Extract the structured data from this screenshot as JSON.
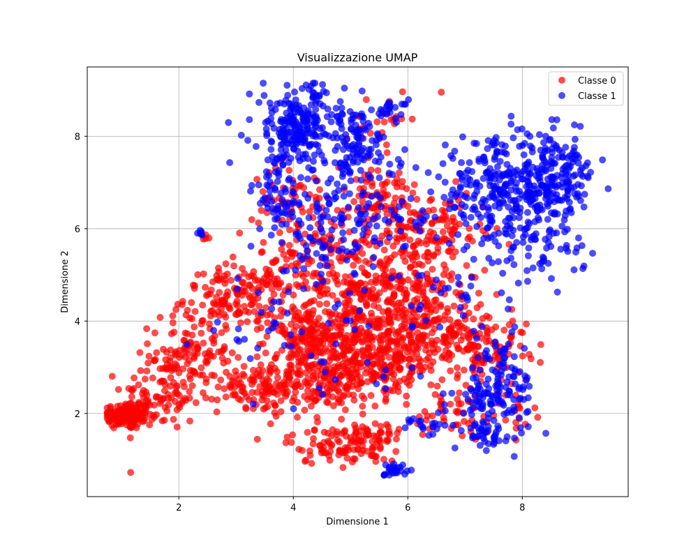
{
  "chart_data": {
    "type": "scatter",
    "title": "Visualizzazione UMAP",
    "xlabel": "Dimensione 1",
    "ylabel": "Dimensione 2",
    "xlim": [
      0.4,
      9.85
    ],
    "ylim": [
      0.2,
      9.5
    ],
    "xticks": [
      2,
      4,
      6,
      8
    ],
    "yticks": [
      2,
      4,
      6,
      8
    ],
    "grid": true,
    "legend_position": "top-right",
    "series": [
      {
        "name": "Classe 0",
        "color": "#ff0000",
        "alpha": 0.7,
        "clusters": [
          {
            "cx": 1.1,
            "cy": 1.95,
            "sx": 0.22,
            "sy": 0.15,
            "n": 140
          },
          {
            "cx": 1.7,
            "cy": 2.4,
            "sx": 0.35,
            "sy": 0.4,
            "n": 90
          },
          {
            "cx": 2.2,
            "cy": 3.3,
            "sx": 0.35,
            "sy": 0.45,
            "n": 110
          },
          {
            "cx": 3.0,
            "cy": 4.5,
            "sx": 0.45,
            "sy": 0.35,
            "n": 150
          },
          {
            "cx": 3.6,
            "cy": 2.6,
            "sx": 0.45,
            "sy": 0.3,
            "n": 150
          },
          {
            "cx": 4.2,
            "cy": 3.6,
            "sx": 0.35,
            "sy": 0.35,
            "n": 120
          },
          {
            "cx": 4.7,
            "cy": 2.8,
            "sx": 0.4,
            "sy": 0.4,
            "n": 160
          },
          {
            "cx": 5.0,
            "cy": 4.0,
            "sx": 0.5,
            "sy": 0.5,
            "n": 200
          },
          {
            "cx": 5.9,
            "cy": 4.8,
            "sx": 0.45,
            "sy": 0.7,
            "n": 230
          },
          {
            "cx": 5.6,
            "cy": 3.1,
            "sx": 0.4,
            "sy": 0.4,
            "n": 140
          },
          {
            "cx": 6.5,
            "cy": 3.7,
            "sx": 0.45,
            "sy": 0.5,
            "n": 150
          },
          {
            "cx": 7.3,
            "cy": 3.5,
            "sx": 0.4,
            "sy": 0.45,
            "n": 110
          },
          {
            "cx": 4.8,
            "cy": 1.3,
            "sx": 0.45,
            "sy": 0.2,
            "n": 90
          },
          {
            "cx": 5.4,
            "cy": 1.5,
            "sx": 0.25,
            "sy": 0.2,
            "n": 40
          },
          {
            "cx": 4.4,
            "cy": 5.2,
            "sx": 0.5,
            "sy": 0.5,
            "n": 120
          },
          {
            "cx": 5.5,
            "cy": 6.5,
            "sx": 0.55,
            "sy": 0.45,
            "n": 110
          },
          {
            "cx": 4.0,
            "cy": 6.6,
            "sx": 0.35,
            "sy": 0.4,
            "n": 60
          },
          {
            "cx": 6.6,
            "cy": 6.0,
            "sx": 0.45,
            "sy": 0.4,
            "n": 80
          },
          {
            "cx": 6.8,
            "cy": 2.0,
            "sx": 0.35,
            "sy": 0.3,
            "n": 40
          },
          {
            "cx": 7.8,
            "cy": 2.0,
            "sx": 0.2,
            "sy": 0.25,
            "n": 20
          },
          {
            "cx": 5.5,
            "cy": 8.3,
            "sx": 0.3,
            "sy": 0.3,
            "n": 25
          },
          {
            "cx": 2.45,
            "cy": 5.82,
            "sx": 0.04,
            "sy": 0.04,
            "n": 4
          }
        ]
      },
      {
        "name": "Classe 1",
        "color": "#0000ff",
        "alpha": 0.7,
        "clusters": [
          {
            "cx": 4.1,
            "cy": 8.2,
            "sx": 0.4,
            "sy": 0.45,
            "n": 230
          },
          {
            "cx": 5.1,
            "cy": 7.7,
            "sx": 0.35,
            "sy": 0.5,
            "n": 120
          },
          {
            "cx": 3.8,
            "cy": 6.8,
            "sx": 0.25,
            "sy": 0.45,
            "n": 70
          },
          {
            "cx": 5.7,
            "cy": 8.6,
            "sx": 0.15,
            "sy": 0.1,
            "n": 20
          },
          {
            "cx": 7.6,
            "cy": 6.8,
            "sx": 0.55,
            "sy": 0.55,
            "n": 280
          },
          {
            "cx": 8.6,
            "cy": 7.1,
            "sx": 0.35,
            "sy": 0.45,
            "n": 170
          },
          {
            "cx": 8.3,
            "cy": 5.6,
            "sx": 0.4,
            "sy": 0.35,
            "n": 60
          },
          {
            "cx": 7.5,
            "cy": 2.3,
            "sx": 0.35,
            "sy": 0.35,
            "n": 110
          },
          {
            "cx": 7.3,
            "cy": 1.55,
            "sx": 0.2,
            "sy": 0.12,
            "n": 30
          },
          {
            "cx": 7.6,
            "cy": 3.2,
            "sx": 0.25,
            "sy": 0.35,
            "n": 40
          },
          {
            "cx": 6.3,
            "cy": 1.8,
            "sx": 0.25,
            "sy": 0.15,
            "n": 20
          },
          {
            "cx": 5.8,
            "cy": 0.75,
            "sx": 0.1,
            "sy": 0.1,
            "n": 25
          },
          {
            "cx": 2.37,
            "cy": 5.92,
            "sx": 0.03,
            "sy": 0.03,
            "n": 6
          },
          {
            "cx": 4.6,
            "cy": 5.5,
            "sx": 0.55,
            "sy": 0.5,
            "n": 70
          },
          {
            "cx": 5.3,
            "cy": 6.3,
            "sx": 0.5,
            "sy": 0.4,
            "n": 60
          },
          {
            "cx": 6.8,
            "cy": 4.6,
            "sx": 0.5,
            "sy": 0.4,
            "n": 30
          },
          {
            "cx": 3.4,
            "cy": 3.8,
            "sx": 0.5,
            "sy": 0.6,
            "n": 25
          },
          {
            "cx": 5.0,
            "cy": 3.2,
            "sx": 0.6,
            "sy": 0.7,
            "n": 25
          }
        ]
      }
    ]
  }
}
